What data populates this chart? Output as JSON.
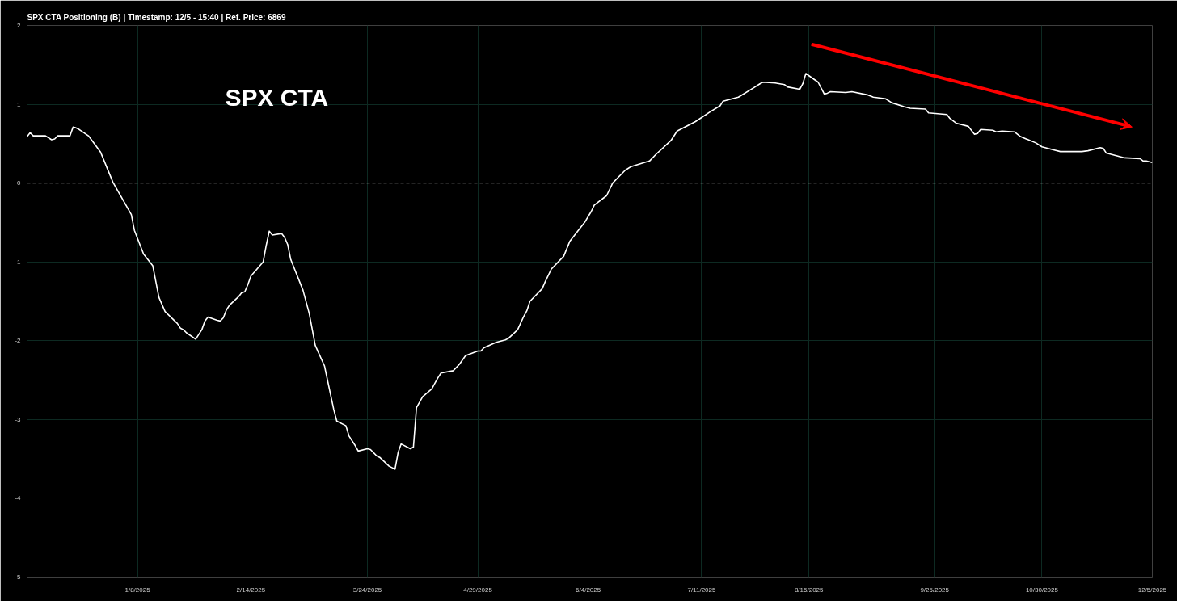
{
  "chart_data": {
    "type": "line",
    "title": "SPX CTA Positioning (B) | Timestamp: 12/5 - 15:40  | Ref. Price: 6869",
    "annotations": [
      "SPX CTA"
    ],
    "x": [
      "2024-12-03",
      "2024-12-04",
      "2024-12-05",
      "2024-12-09",
      "2024-12-11",
      "2024-12-12",
      "2024-12-13",
      "2024-12-17",
      "2024-12-18",
      "2024-12-19",
      "2024-12-20",
      "2024-12-23",
      "2024-12-24",
      "2024-12-27",
      "2024-12-31",
      "2025-01-06",
      "2025-01-07",
      "2025-01-10",
      "2025-01-13",
      "2025-01-15",
      "2025-01-17",
      "2025-01-21",
      "2025-01-22",
      "2025-01-23",
      "2025-01-24",
      "2025-01-27",
      "2025-01-29",
      "2025-01-30",
      "2025-01-31",
      "2025-02-03",
      "2025-02-04",
      "2025-02-05",
      "2025-02-06",
      "2025-02-07",
      "2025-02-10",
      "2025-02-11",
      "2025-02-12",
      "2025-02-13",
      "2025-02-14",
      "2025-02-18",
      "2025-02-19",
      "2025-02-20",
      "2025-02-21",
      "2025-02-24",
      "2025-02-25",
      "2025-02-26",
      "2025-02-27",
      "2025-03-03",
      "2025-03-05",
      "2025-03-07",
      "2025-03-10",
      "2025-03-13",
      "2025-03-14",
      "2025-03-17",
      "2025-03-18",
      "2025-03-20",
      "2025-03-21",
      "2025-03-24",
      "2025-03-25",
      "2025-03-26",
      "2025-03-27",
      "2025-03-28",
      "2025-03-31",
      "2025-04-01",
      "2025-04-02",
      "2025-04-03",
      "2025-04-04",
      "2025-04-07",
      "2025-04-08",
      "2025-04-09",
      "2025-04-10",
      "2025-04-11",
      "2025-04-14",
      "2025-04-15",
      "2025-04-16",
      "2025-04-17",
      "2025-04-21",
      "2025-04-23",
      "2025-04-25",
      "2025-04-29",
      "2025-04-30",
      "2025-05-01",
      "2025-05-05",
      "2025-05-07",
      "2025-05-08",
      "2025-05-09",
      "2025-05-12",
      "2025-05-14",
      "2025-05-15",
      "2025-05-16",
      "2025-05-20",
      "2025-05-21",
      "2025-05-23",
      "2025-05-27",
      "2025-05-29",
      "2025-06-03",
      "2025-06-05",
      "2025-06-06",
      "2025-06-10",
      "2025-06-12",
      "2025-06-16",
      "2025-06-18",
      "2025-06-24",
      "2025-06-26",
      "2025-07-01",
      "2025-07-03",
      "2025-07-09",
      "2025-07-14",
      "2025-07-17",
      "2025-07-18",
      "2025-07-23",
      "2025-07-28",
      "2025-07-30",
      "2025-07-31",
      "2025-08-04",
      "2025-08-07",
      "2025-08-08",
      "2025-08-12",
      "2025-08-13",
      "2025-08-14",
      "2025-08-18",
      "2025-08-20",
      "2025-08-21",
      "2025-08-22",
      "2025-08-27",
      "2025-08-29",
      "2025-09-03",
      "2025-09-05",
      "2025-09-09",
      "2025-09-11",
      "2025-09-15",
      "2025-09-17",
      "2025-09-22",
      "2025-09-23",
      "2025-09-29",
      "2025-09-30",
      "2025-10-02",
      "2025-10-06",
      "2025-10-08",
      "2025-10-09",
      "2025-10-10",
      "2025-10-14",
      "2025-10-15",
      "2025-10-17",
      "2025-10-21",
      "2025-10-23",
      "2025-10-28",
      "2025-10-30",
      "2025-11-03",
      "2025-11-05",
      "2025-11-10",
      "2025-11-12",
      "2025-11-14",
      "2025-11-18",
      "2025-11-19",
      "2025-11-20",
      "2025-11-24",
      "2025-11-26",
      "2025-12-01",
      "2025-12-02",
      "2025-12-03",
      "2025-12-05"
    ],
    "series": [
      {
        "color": "#ffffff",
        "values": [
          0.59,
          0.64,
          0.6,
          0.6,
          0.55,
          0.56,
          0.6,
          0.6,
          0.71,
          0.7,
          0.68,
          0.6,
          0.55,
          0.39,
          0.01,
          -0.4,
          -0.6,
          -0.9,
          -1.05,
          -1.45,
          -1.63,
          -1.78,
          -1.84,
          -1.86,
          -1.9,
          -1.98,
          -1.86,
          -1.75,
          -1.7,
          -1.74,
          -1.75,
          -1.71,
          -1.61,
          -1.55,
          -1.44,
          -1.39,
          -1.38,
          -1.29,
          -1.18,
          -1.0,
          -0.79,
          -0.61,
          -0.66,
          -0.64,
          -0.69,
          -0.78,
          -0.97,
          -1.36,
          -1.65,
          -2.06,
          -2.32,
          -2.87,
          -3.02,
          -3.08,
          -3.21,
          -3.33,
          -3.4,
          -3.37,
          -3.38,
          -3.42,
          -3.46,
          -3.48,
          -3.59,
          -3.61,
          -3.63,
          -3.42,
          -3.31,
          -3.37,
          -3.35,
          -2.85,
          -2.78,
          -2.71,
          -2.61,
          -2.54,
          -2.47,
          -2.41,
          -2.38,
          -2.3,
          -2.19,
          -2.13,
          -2.13,
          -2.09,
          -2.02,
          -2.0,
          -1.99,
          -1.97,
          -1.86,
          -1.69,
          -1.62,
          -1.5,
          -1.34,
          -1.25,
          -1.09,
          -0.93,
          -0.74,
          -0.49,
          -0.36,
          -0.28,
          -0.16,
          0.0,
          0.16,
          0.21,
          0.28,
          0.36,
          0.54,
          0.66,
          0.78,
          0.91,
          0.98,
          1.04,
          1.09,
          1.21,
          1.26,
          1.28,
          1.27,
          1.25,
          1.22,
          1.19,
          1.26,
          1.39,
          1.28,
          1.13,
          1.14,
          1.16,
          1.15,
          1.16,
          1.12,
          1.09,
          1.07,
          1.02,
          0.97,
          0.95,
          0.94,
          0.89,
          0.87,
          0.82,
          0.76,
          0.72,
          0.62,
          0.63,
          0.68,
          0.67,
          0.65,
          0.66,
          0.65,
          0.59,
          0.51,
          0.46,
          0.42,
          0.4,
          0.4,
          0.4,
          0.41,
          0.45,
          0.44,
          0.38,
          0.34,
          0.32,
          0.31,
          0.28,
          0.28,
          0.26
        ]
      }
    ],
    "xlim": [
      "2024-12-03",
      "2025-12-05"
    ],
    "xticks": [
      {
        "value": "2025-01-08",
        "label": "1/8/2025"
      },
      {
        "value": "2025-02-14",
        "label": "2/14/2025"
      },
      {
        "value": "2025-03-24",
        "label": "3/24/2025"
      },
      {
        "value": "2025-04-29",
        "label": "4/29/2025"
      },
      {
        "value": "2025-06-04",
        "label": "6/4/2025"
      },
      {
        "value": "2025-07-11",
        "label": "7/11/2025"
      },
      {
        "value": "2025-08-15",
        "label": "8/15/2025"
      },
      {
        "value": "2025-09-25",
        "label": "9/25/2025"
      },
      {
        "value": "2025-10-30",
        "label": "10/30/2025"
      },
      {
        "value": "2025-12-05",
        "label": "12/5/2025"
      }
    ],
    "ylim": [
      -5,
      2
    ],
    "yticks": [
      -5,
      -4,
      -3,
      -2,
      -1,
      0,
      1,
      2
    ],
    "ref_lines": [
      {
        "axis": "y",
        "value": 0,
        "color": "#ffffff",
        "line_style": "dashed"
      }
    ],
    "grid": true,
    "marker": "none",
    "line_style": "solid"
  }
}
